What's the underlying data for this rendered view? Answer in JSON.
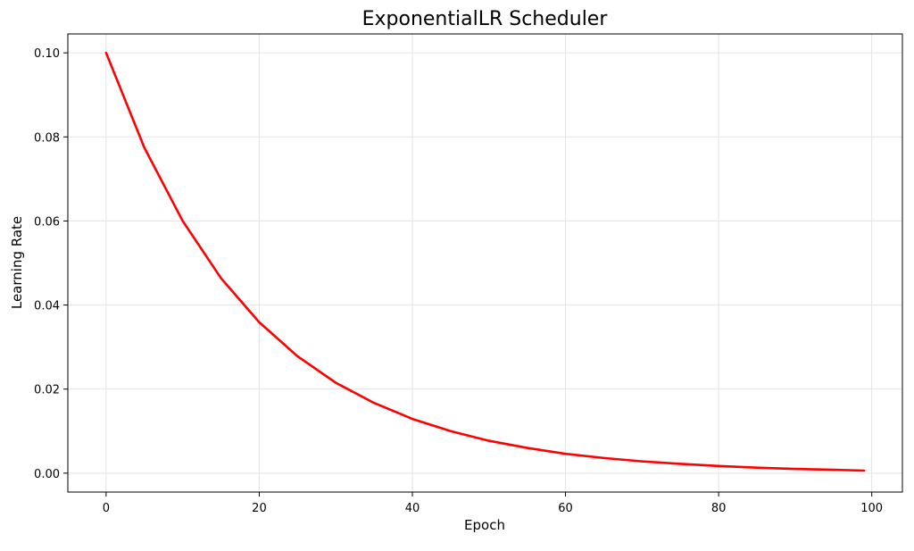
{
  "chart_data": {
    "type": "line",
    "title": "ExponentialLR Scheduler",
    "xlabel": "Epoch",
    "ylabel": "Learning Rate",
    "xlim": [
      -5,
      104
    ],
    "ylim": [
      -0.0045,
      0.1045
    ],
    "xticks": [
      0,
      20,
      40,
      60,
      80,
      100
    ],
    "xtick_labels": [
      "0",
      "20",
      "40",
      "60",
      "80",
      "100"
    ],
    "yticks": [
      0.0,
      0.02,
      0.04,
      0.06,
      0.08,
      0.1
    ],
    "ytick_labels": [
      "0.00",
      "0.02",
      "0.04",
      "0.06",
      "0.08",
      "0.10"
    ],
    "grid": true,
    "legend": "none",
    "series": [
      {
        "color": "#ff0000",
        "x": [
          0,
          5,
          10,
          15,
          20,
          25,
          30,
          35,
          40,
          45,
          50,
          55,
          60,
          65,
          70,
          75,
          80,
          85,
          90,
          95,
          99
        ],
        "y": [
          0.1,
          0.0774,
          0.06,
          0.0464,
          0.0359,
          0.0278,
          0.0215,
          0.0167,
          0.0129,
          0.01,
          0.0077,
          0.006,
          0.0046,
          0.0036,
          0.0028,
          0.0022,
          0.0017,
          0.0013,
          0.001,
          0.0008,
          0.0006
        ]
      }
    ]
  }
}
